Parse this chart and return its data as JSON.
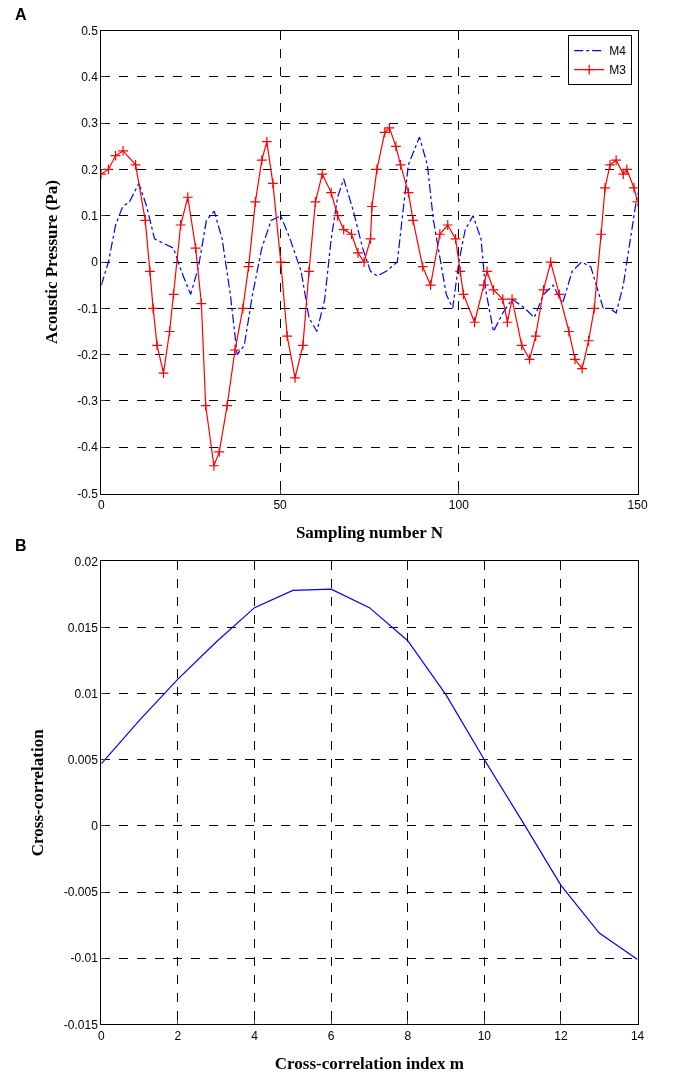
{
  "chart_data": [
    {
      "type": "line",
      "xlabel": "Sampling number N",
      "ylabel": "Acoustic Pressure (Pa)",
      "annotations": [
        "A"
      ],
      "xlim": [
        0,
        150
      ],
      "xticks": [
        0,
        50,
        100,
        150
      ],
      "ylim": [
        -0.5,
        0.5
      ],
      "yticks": [
        -0.5,
        -0.4,
        -0.3,
        -0.2,
        -0.1,
        0,
        0.1,
        0.2,
        0.3,
        0.4,
        0.5
      ],
      "grid": true,
      "legend": "top right",
      "series": [
        {
          "name": "M4",
          "color": "#0000ff",
          "line_style": "dashed",
          "marker": "none",
          "x": [
            0,
            2,
            4,
            6,
            7.9,
            10.5,
            12.7,
            14.9,
            17.5,
            20.2,
            22.4,
            25.0,
            27.2,
            29.4,
            31.6,
            33.8,
            36.1,
            38.0,
            40.0,
            42.3,
            44.9,
            47.5,
            50.2,
            52.8,
            55.9,
            58.1,
            60.3,
            62.5,
            64.3,
            66.1,
            67.8,
            70.5,
            73.1,
            75.3,
            77.1,
            79.7,
            82.8,
            84.1,
            85.9,
            89.0,
            91.2,
            92.9,
            94.7,
            96.5,
            98.3,
            100.0,
            101.8,
            104.0,
            106.2,
            107.5,
            109.7,
            112.3,
            114.9,
            118.5,
            121.1,
            123.7,
            126.4,
            129.0,
            131.7,
            134.3,
            136.9,
            140.4,
            142.2,
            144,
            146,
            148,
            150
          ],
          "values": [
            -0.05,
            0.0,
            0.08,
            0.12,
            0.13,
            0.17,
            0.12,
            0.05,
            0.04,
            0.03,
            -0.02,
            -0.07,
            -0.01,
            0.09,
            0.11,
            0.05,
            -0.07,
            -0.2,
            -0.18,
            -0.07,
            0.03,
            0.09,
            0.1,
            0.05,
            -0.02,
            -0.12,
            -0.15,
            -0.08,
            0.05,
            0.14,
            0.18,
            0.11,
            0.03,
            -0.02,
            -0.03,
            -0.02,
            0.0,
            0.09,
            0.21,
            0.27,
            0.21,
            0.09,
            0.01,
            -0.07,
            -0.1,
            0.0,
            0.07,
            0.1,
            0.05,
            -0.06,
            -0.15,
            -0.11,
            -0.08,
            -0.1,
            -0.12,
            -0.07,
            -0.05,
            -0.09,
            -0.02,
            0.0,
            -0.01,
            -0.1,
            -0.1,
            -0.11,
            -0.05,
            0.05,
            0.15
          ]
        },
        {
          "name": "M3",
          "color": "#ff0000",
          "line_style": "solid",
          "marker": "cross",
          "x": [
            0,
            2,
            4,
            6.1,
            9.6,
            12.3,
            13.6,
            14.5,
            15.6,
            17.4,
            19.1,
            20.2,
            22.2,
            24.2,
            26.4,
            28.0,
            29.2,
            31.5,
            33.0,
            35.2,
            37.4,
            39.6,
            41.2,
            43.1,
            44.9,
            46.3,
            48.0,
            50.2,
            52.0,
            54.2,
            56.4,
            58.1,
            59.9,
            61.8,
            64.3,
            66.1,
            67.8,
            70.0,
            71.8,
            73.5,
            75.3,
            75.7,
            77.1,
            79.3,
            80.6,
            82.4,
            83.7,
            85.9,
            87.2,
            89.9,
            92.1,
            94.7,
            96.9,
            99.1,
            100.4,
            101.3,
            104.4,
            107.0,
            107.9,
            109.7,
            112.3,
            113.6,
            114.9,
            117.6,
            119.8,
            121.5,
            123.7,
            125.7,
            128.1,
            130.8,
            132.5,
            134.5,
            136.3,
            137.9,
            139.8,
            140.9,
            142.3,
            144,
            146,
            147,
            149,
            150
          ],
          "values": [
            0.19,
            0.2,
            0.23,
            0.24,
            0.21,
            0.09,
            -0.02,
            -0.1,
            -0.18,
            -0.24,
            -0.15,
            -0.07,
            0.08,
            0.14,
            0.03,
            -0.09,
            -0.31,
            -0.44,
            -0.41,
            -0.31,
            -0.19,
            -0.1,
            -0.01,
            0.13,
            0.22,
            0.26,
            0.17,
            0.0,
            -0.16,
            -0.25,
            -0.18,
            -0.02,
            0.13,
            0.19,
            0.15,
            0.1,
            0.07,
            0.06,
            0.02,
            0.0,
            0.05,
            0.12,
            0.2,
            0.28,
            0.29,
            0.25,
            0.21,
            0.15,
            0.09,
            -0.01,
            -0.05,
            0.06,
            0.08,
            0.05,
            -0.02,
            -0.07,
            -0.13,
            -0.05,
            -0.02,
            -0.06,
            -0.08,
            -0.13,
            -0.08,
            -0.18,
            -0.21,
            -0.16,
            -0.06,
            0.0,
            -0.07,
            -0.15,
            -0.21,
            -0.23,
            -0.17,
            -0.1,
            0.06,
            0.16,
            0.21,
            0.22,
            0.19,
            0.2,
            0.16,
            0.13
          ]
        }
      ]
    },
    {
      "type": "line",
      "xlabel": "Cross-correlation index m",
      "ylabel": "Cross-correlation",
      "annotations": [
        "B"
      ],
      "xlim": [
        0,
        14
      ],
      "xticks": [
        0,
        2,
        4,
        6,
        8,
        10,
        12,
        14
      ],
      "ylim": [
        -0.015,
        0.02
      ],
      "yticks": [
        -0.015,
        -0.01,
        -0.005,
        0,
        0.005,
        0.01,
        0.015,
        0.02
      ],
      "grid": true,
      "series": [
        {
          "color": "#0000ff",
          "line_style": "solid",
          "marker": "none",
          "x": [
            0,
            1,
            2,
            3,
            4,
            5,
            6,
            7,
            8,
            9,
            10,
            11,
            12,
            13,
            14
          ],
          "values": [
            0.0047,
            0.008,
            0.0111,
            0.0139,
            0.0165,
            0.0178,
            0.0179,
            0.0165,
            0.014,
            0.0099,
            0.005,
            0.0003,
            -0.0045,
            -0.0081,
            -0.0101
          ]
        }
      ]
    }
  ]
}
